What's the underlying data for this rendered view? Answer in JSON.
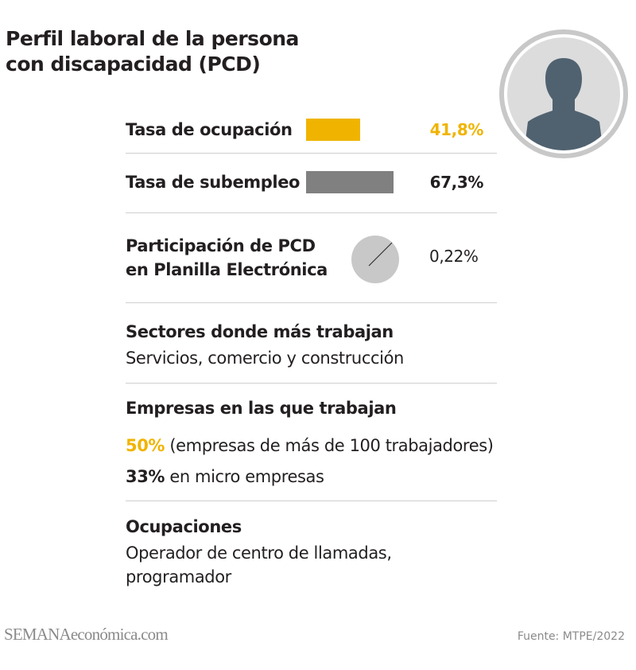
{
  "title": {
    "line1": "Perfil laboral de la persona",
    "line2": "con discapacidad (PCD)"
  },
  "colors": {
    "accent": "#f0b400",
    "bar_gray": "#808080",
    "pie_gray": "#c8c8c8",
    "avatar_ring": "#c8c8c8",
    "avatar_fill": "#dcdcdd",
    "avatar_person": "#506270"
  },
  "icons": {
    "avatar": "person-silhouette-icon"
  },
  "chart_data": {
    "type": "bar",
    "categories": [
      "Tasa de ocupación",
      "Tasa de subempleo"
    ],
    "values": [
      41.8,
      67.3
    ],
    "value_labels": [
      "41,8%",
      "67,3%"
    ],
    "unit": "%"
  },
  "participation": {
    "label_line1": "Participación de PCD",
    "label_line2": "en Planilla Electrónica",
    "value": 0.22,
    "value_label": "0,22%"
  },
  "sectors": {
    "heading": "Sectores donde más trabajan",
    "text": "Servicios, comercio y construcción"
  },
  "companies": {
    "heading": "Empresas en las que trabajan",
    "line1_value": "50%",
    "line1_text": " (empresas de más de 100 trabajadores)",
    "line2_value": "33%",
    "line2_text": " en micro empresas"
  },
  "occupations": {
    "heading": "Ocupaciones",
    "line1": "Operador de centro de llamadas,",
    "line2": "programador"
  },
  "footer": {
    "logo_a": "SEMANA",
    "logo_b": "económica.com",
    "source": "Fuente: MTPE/2022"
  }
}
